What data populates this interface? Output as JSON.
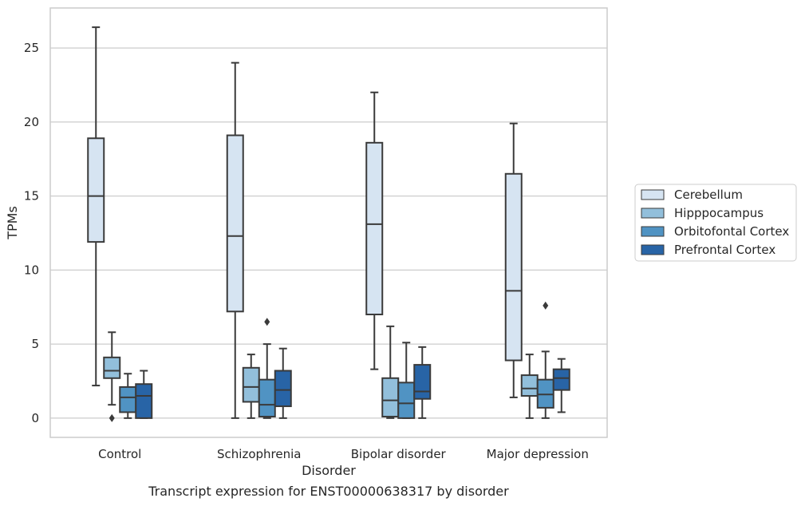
{
  "caption": "Transcript expression for ENST00000638317 by disorder",
  "chart_data": {
    "type": "box",
    "xlabel": "Disorder",
    "ylabel": "TPMs",
    "ylim": [
      -1.3,
      27.7
    ],
    "yticks": [
      0,
      5,
      10,
      15,
      20,
      25
    ],
    "grid": "horizontal",
    "legend_position": "right",
    "categories": [
      "Control",
      "Schizophrenia",
      "Bipolar disorder",
      "Major depression"
    ],
    "colors": {
      "Cerebellum": "#d6e4f2",
      "Hipppocampus": "#92bfdb",
      "Orbitofontal Cortex": "#5093c3",
      "Prefrontal Cortex": "#2864a6"
    },
    "series": [
      {
        "name": "Cerebellum",
        "boxes": [
          {
            "whisker_low": 2.2,
            "q1": 11.9,
            "median": 15.0,
            "q3": 18.9,
            "whisker_high": 26.4,
            "outliers": []
          },
          {
            "whisker_low": 0.0,
            "q1": 7.2,
            "median": 12.3,
            "q3": 19.1,
            "whisker_high": 24.0,
            "outliers": []
          },
          {
            "whisker_low": 3.3,
            "q1": 7.0,
            "median": 13.1,
            "q3": 18.6,
            "whisker_high": 22.0,
            "outliers": []
          },
          {
            "whisker_low": 1.4,
            "q1": 3.9,
            "median": 8.6,
            "q3": 16.5,
            "whisker_high": 19.9,
            "outliers": []
          }
        ]
      },
      {
        "name": "Hipppocampus",
        "boxes": [
          {
            "whisker_low": 0.9,
            "q1": 2.7,
            "median": 3.2,
            "q3": 4.1,
            "whisker_high": 5.8,
            "outliers": [
              0.0
            ]
          },
          {
            "whisker_low": 0.0,
            "q1": 1.1,
            "median": 2.1,
            "q3": 3.4,
            "whisker_high": 4.3,
            "outliers": []
          },
          {
            "whisker_low": 0.0,
            "q1": 0.1,
            "median": 1.2,
            "q3": 2.7,
            "whisker_high": 6.2,
            "outliers": []
          },
          {
            "whisker_low": 0.0,
            "q1": 1.5,
            "median": 2.0,
            "q3": 2.9,
            "whisker_high": 4.3,
            "outliers": []
          }
        ]
      },
      {
        "name": "Orbitofontal Cortex",
        "boxes": [
          {
            "whisker_low": 0.0,
            "q1": 0.4,
            "median": 1.4,
            "q3": 2.1,
            "whisker_high": 3.0,
            "outliers": []
          },
          {
            "whisker_low": 0.0,
            "q1": 0.1,
            "median": 0.9,
            "q3": 2.6,
            "whisker_high": 5.0,
            "outliers": [
              6.5
            ]
          },
          {
            "whisker_low": 0.0,
            "q1": 0.0,
            "median": 1.0,
            "q3": 2.4,
            "whisker_high": 5.1,
            "outliers": []
          },
          {
            "whisker_low": 0.0,
            "q1": 0.7,
            "median": 1.6,
            "q3": 2.6,
            "whisker_high": 4.5,
            "outliers": [
              7.6
            ]
          }
        ]
      },
      {
        "name": "Prefrontal Cortex",
        "boxes": [
          {
            "whisker_low": 0.0,
            "q1": 0.0,
            "median": 1.5,
            "q3": 2.3,
            "whisker_high": 3.2,
            "outliers": []
          },
          {
            "whisker_low": 0.0,
            "q1": 0.8,
            "median": 1.9,
            "q3": 3.2,
            "whisker_high": 4.7,
            "outliers": []
          },
          {
            "whisker_low": 0.0,
            "q1": 1.3,
            "median": 1.8,
            "q3": 3.6,
            "whisker_high": 4.8,
            "outliers": []
          },
          {
            "whisker_low": 0.4,
            "q1": 1.9,
            "median": 2.7,
            "q3": 3.3,
            "whisker_high": 4.0,
            "outliers": []
          }
        ]
      }
    ]
  }
}
